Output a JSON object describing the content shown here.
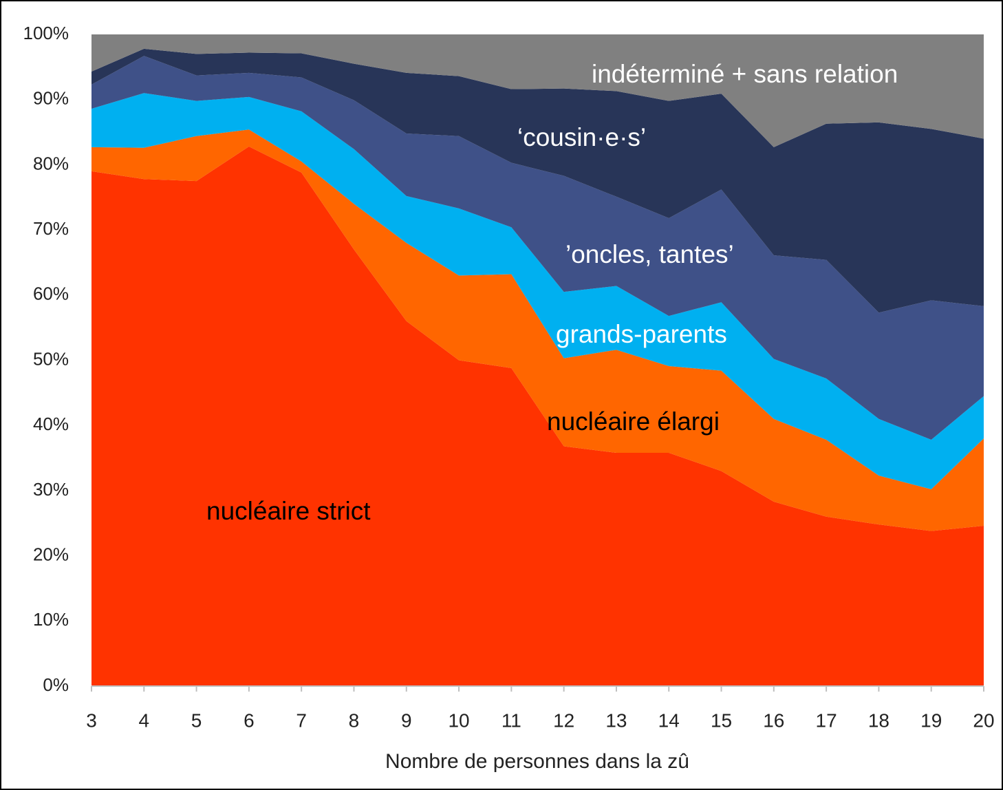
{
  "chart_data": {
    "type": "stacked_area_100",
    "x_label": "Nombre de personnes dans la zû",
    "x": [
      3,
      4,
      5,
      6,
      7,
      8,
      9,
      10,
      11,
      12,
      13,
      14,
      15,
      16,
      17,
      18,
      19,
      20
    ],
    "xlim": [
      3,
      20
    ],
    "xticks": [
      3,
      4,
      5,
      6,
      7,
      8,
      9,
      10,
      11,
      12,
      13,
      14,
      15,
      16,
      17,
      18,
      19,
      20
    ],
    "ylim": [
      0,
      100
    ],
    "yticks": [
      {
        "value": 0,
        "label": "0%"
      },
      {
        "value": 10,
        "label": "10%"
      },
      {
        "value": 20,
        "label": "20%"
      },
      {
        "value": 30,
        "label": "30%"
      },
      {
        "value": 40,
        "label": "40%"
      },
      {
        "value": 50,
        "label": "50%"
      },
      {
        "value": 60,
        "label": "60%"
      },
      {
        "value": 70,
        "label": "70%"
      },
      {
        "value": 80,
        "label": "80%"
      },
      {
        "value": 90,
        "label": "90%"
      },
      {
        "value": 100,
        "label": "100%"
      }
    ],
    "series": [
      {
        "name": "nucléaire strict",
        "color": "#ff3300",
        "label_color": "#000000",
        "values": [
          79,
          77.8,
          77.5,
          82.8,
          78.8,
          67,
          56,
          50,
          48.8,
          36.8,
          35.8,
          35.8,
          33,
          28.3,
          26,
          24.8,
          23.8,
          24.6
        ]
      },
      {
        "name": "nucléaire élargi",
        "color": "#ff6600",
        "label_color": "#000000",
        "values": [
          3.7,
          4.8,
          6.9,
          2.6,
          1.7,
          7,
          12,
          13,
          14.4,
          13.5,
          15.8,
          13.3,
          15.4,
          12.7,
          11.8,
          7.5,
          6.4,
          13.4
        ]
      },
      {
        "name": "grands-parents",
        "color": "#00b0f0",
        "label_color": "#ffffff",
        "values": [
          5.9,
          8.4,
          5.4,
          5.0,
          7.7,
          8.4,
          7.2,
          10.3,
          7.2,
          10.2,
          9.8,
          7.7,
          10.5,
          9.2,
          9.4,
          8.7,
          7.6,
          6.5
        ]
      },
      {
        "name": "’oncles, tantes’",
        "color": "#3f5188",
        "label_color": "#ffffff",
        "values": [
          3.7,
          5.7,
          3.9,
          3.7,
          5.2,
          7.5,
          9.6,
          11.1,
          9.9,
          17.8,
          13.7,
          15,
          17.3,
          15.9,
          18.2,
          16.3,
          21.4,
          13.8
        ]
      },
      {
        "name": "‘cousin·e·s’",
        "color": "#283558",
        "label_color": "#ffffff",
        "values": [
          2,
          1.1,
          3.3,
          3.1,
          3.7,
          5.6,
          9.3,
          9.2,
          11.3,
          13.4,
          16.2,
          18,
          14.7,
          16.6,
          20.9,
          29.2,
          26.3,
          25.7
        ]
      },
      {
        "name": "indéterminé + sans relation",
        "color": "#808080",
        "label_color": "#ffffff",
        "values": [
          5.7,
          2.2,
          3,
          2.8,
          2.9,
          4.5,
          5.9,
          6.4,
          8.4,
          8.3,
          8.7,
          10.2,
          9.1,
          17.3,
          13.7,
          13.5,
          14.5,
          16
        ]
      }
    ]
  }
}
